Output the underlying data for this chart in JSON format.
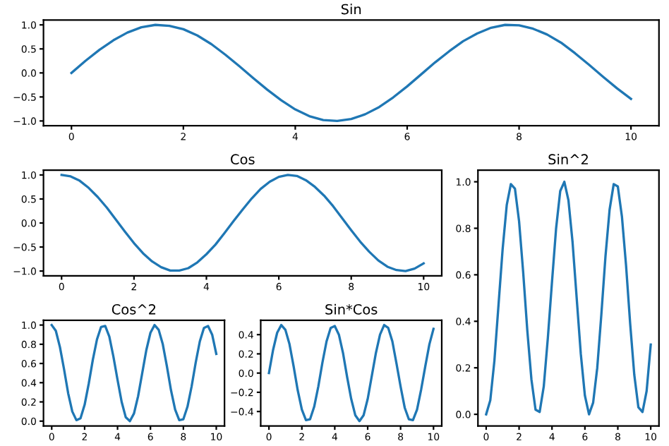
{
  "chart_data": [
    {
      "type": "line",
      "title": "Sin",
      "x": [
        0,
        0.25,
        0.5,
        0.75,
        1,
        1.25,
        1.5,
        1.75,
        2,
        2.25,
        2.5,
        2.75,
        3,
        3.25,
        3.5,
        3.75,
        4,
        4.25,
        4.5,
        4.75,
        5,
        5.25,
        5.5,
        5.75,
        6,
        6.25,
        6.5,
        6.75,
        7,
        7.25,
        7.5,
        7.75,
        8,
        8.25,
        8.5,
        8.75,
        9,
        9.25,
        9.5,
        9.75,
        10
      ],
      "series": [
        {
          "color": "#1f77b4",
          "values": [
            0,
            0.25,
            0.48,
            0.68,
            0.84,
            0.95,
            1.0,
            0.98,
            0.91,
            0.78,
            0.6,
            0.38,
            0.14,
            -0.11,
            -0.35,
            -0.57,
            -0.76,
            -0.9,
            -0.98,
            -1.0,
            -0.96,
            -0.86,
            -0.71,
            -0.51,
            -0.28,
            -0.03,
            0.22,
            0.45,
            0.66,
            0.82,
            0.94,
            1.0,
            0.99,
            0.92,
            0.8,
            0.63,
            0.41,
            0.17,
            -0.08,
            -0.32,
            -0.54
          ]
        }
      ],
      "xlim": [
        -0.5,
        10.5
      ],
      "ylim": [
        -1.1,
        1.1
      ],
      "xticks": [
        0,
        2,
        4,
        6,
        8,
        10
      ],
      "yticks": [
        {
          "value": -1,
          "label": "−1.0"
        },
        {
          "value": -0.5,
          "label": "−0.5"
        },
        {
          "value": 0,
          "label": "0.0"
        },
        0.5,
        {
          "value": 1,
          "label": "1.0"
        }
      ],
      "grid": false,
      "legend": false
    },
    {
      "type": "line",
      "title": "Cos",
      "x": [
        0,
        0.25,
        0.5,
        0.75,
        1,
        1.25,
        1.5,
        1.75,
        2,
        2.25,
        2.5,
        2.75,
        3,
        3.25,
        3.5,
        3.75,
        4,
        4.25,
        4.5,
        4.75,
        5,
        5.25,
        5.5,
        5.75,
        6,
        6.25,
        6.5,
        6.75,
        7,
        7.25,
        7.5,
        7.75,
        8,
        8.25,
        8.5,
        8.75,
        9,
        9.25,
        9.5,
        9.75,
        10
      ],
      "series": [
        {
          "color": "#1f77b4",
          "values": [
            1,
            0.97,
            0.88,
            0.73,
            0.54,
            0.32,
            0.07,
            -0.18,
            -0.42,
            -0.63,
            -0.8,
            -0.92,
            -0.99,
            -0.99,
            -0.94,
            -0.82,
            -0.65,
            -0.45,
            -0.21,
            0.04,
            0.28,
            0.51,
            0.71,
            0.86,
            0.96,
            1.0,
            0.98,
            0.89,
            0.75,
            0.57,
            0.35,
            0.1,
            -0.15,
            -0.39,
            -0.6,
            -0.78,
            -0.91,
            -0.98,
            -1.0,
            -0.95,
            -0.84
          ]
        }
      ],
      "xlim": [
        -0.5,
        10.5
      ],
      "ylim": [
        -1.1,
        1.1
      ],
      "xticks": [
        0,
        2,
        4,
        6,
        8,
        10
      ],
      "yticks": [
        {
          "value": -1,
          "label": "−1.0"
        },
        {
          "value": -0.5,
          "label": "−0.5"
        },
        {
          "value": 0,
          "label": "0.0"
        },
        0.5,
        {
          "value": 1,
          "label": "1.0"
        }
      ],
      "grid": false,
      "legend": false
    },
    {
      "type": "line",
      "title": "Sin^2",
      "x": [
        0,
        0.25,
        0.5,
        0.75,
        1,
        1.25,
        1.5,
        1.75,
        2,
        2.25,
        2.5,
        2.75,
        3,
        3.25,
        3.5,
        3.75,
        4,
        4.25,
        4.5,
        4.75,
        5,
        5.25,
        5.5,
        5.75,
        6,
        6.25,
        6.5,
        6.75,
        7,
        7.25,
        7.5,
        7.75,
        8,
        8.25,
        8.5,
        8.75,
        9,
        9.25,
        9.5,
        9.75,
        10
      ],
      "series": [
        {
          "color": "#1f77b4",
          "values": [
            0,
            0.06,
            0.23,
            0.47,
            0.71,
            0.9,
            0.99,
            0.97,
            0.83,
            0.61,
            0.36,
            0.15,
            0.02,
            0.01,
            0.12,
            0.33,
            0.57,
            0.8,
            0.96,
            1.0,
            0.92,
            0.74,
            0.5,
            0.26,
            0.08,
            0.0,
            0.05,
            0.2,
            0.43,
            0.68,
            0.88,
            0.99,
            0.98,
            0.85,
            0.64,
            0.39,
            0.17,
            0.03,
            0.01,
            0.1,
            0.3
          ]
        }
      ],
      "xlim": [
        -0.5,
        10.5
      ],
      "ylim": [
        -0.05,
        1.05
      ],
      "xticks": [
        0,
        2,
        4,
        6,
        8,
        10
      ],
      "yticks": [
        {
          "value": 0,
          "label": "0.0"
        },
        0.2,
        0.4,
        0.6,
        0.8,
        {
          "value": 1,
          "label": "1.0"
        }
      ],
      "grid": false,
      "legend": false
    },
    {
      "type": "line",
      "title": "Cos^2",
      "x": [
        0,
        0.25,
        0.5,
        0.75,
        1,
        1.25,
        1.5,
        1.75,
        2,
        2.25,
        2.5,
        2.75,
        3,
        3.25,
        3.5,
        3.75,
        4,
        4.25,
        4.5,
        4.75,
        5,
        5.25,
        5.5,
        5.75,
        6,
        6.25,
        6.5,
        6.75,
        7,
        7.25,
        7.5,
        7.75,
        8,
        8.25,
        8.5,
        8.75,
        9,
        9.25,
        9.5,
        9.75,
        10
      ],
      "series": [
        {
          "color": "#1f77b4",
          "values": [
            1,
            0.94,
            0.77,
            0.54,
            0.29,
            0.1,
            0.01,
            0.03,
            0.17,
            0.39,
            0.64,
            0.85,
            0.98,
            0.99,
            0.88,
            0.67,
            0.43,
            0.2,
            0.04,
            0.0,
            0.08,
            0.26,
            0.5,
            0.74,
            0.92,
            1.0,
            0.95,
            0.8,
            0.57,
            0.32,
            0.12,
            0.01,
            0.02,
            0.15,
            0.36,
            0.61,
            0.83,
            0.97,
            0.99,
            0.9,
            0.7
          ]
        }
      ],
      "xlim": [
        -0.5,
        10.5
      ],
      "ylim": [
        -0.05,
        1.05
      ],
      "xticks": [
        0,
        2,
        4,
        6,
        8,
        10
      ],
      "yticks": [
        {
          "value": 0,
          "label": "0.0"
        },
        0.2,
        0.4,
        0.6,
        0.8,
        {
          "value": 1,
          "label": "1.0"
        }
      ],
      "grid": false,
      "legend": false
    },
    {
      "type": "line",
      "title": "Sin*Cos",
      "x": [
        0,
        0.25,
        0.5,
        0.75,
        1,
        1.25,
        1.5,
        1.75,
        2,
        2.25,
        2.5,
        2.75,
        3,
        3.25,
        3.5,
        3.75,
        4,
        4.25,
        4.5,
        4.75,
        5,
        5.25,
        5.5,
        5.75,
        6,
        6.25,
        6.5,
        6.75,
        7,
        7.25,
        7.5,
        7.75,
        8,
        8.25,
        8.5,
        8.75,
        9,
        9.25,
        9.5,
        9.75,
        10
      ],
      "series": [
        {
          "color": "#1f77b4",
          "values": [
            0,
            0.24,
            0.42,
            0.5,
            0.45,
            0.3,
            0.07,
            -0.18,
            -0.38,
            -0.49,
            -0.48,
            -0.35,
            -0.14,
            0.11,
            0.33,
            0.47,
            0.49,
            0.4,
            0.21,
            -0.04,
            -0.27,
            -0.44,
            -0.5,
            -0.44,
            -0.27,
            -0.03,
            0.21,
            0.4,
            0.5,
            0.47,
            0.33,
            0.1,
            -0.14,
            -0.36,
            -0.48,
            -0.49,
            -0.38,
            -0.17,
            0.07,
            0.3,
            0.46
          ]
        }
      ],
      "xlim": [
        -0.5,
        10.5
      ],
      "ylim": [
        -0.55,
        0.55
      ],
      "xticks": [
        0,
        2,
        4,
        6,
        8,
        10
      ],
      "yticks": [
        {
          "value": -0.4,
          "label": "−0.4"
        },
        {
          "value": -0.2,
          "label": "−0.2"
        },
        {
          "value": 0,
          "label": "0.0"
        },
        0.2,
        0.4
      ],
      "grid": false,
      "legend": false
    }
  ]
}
